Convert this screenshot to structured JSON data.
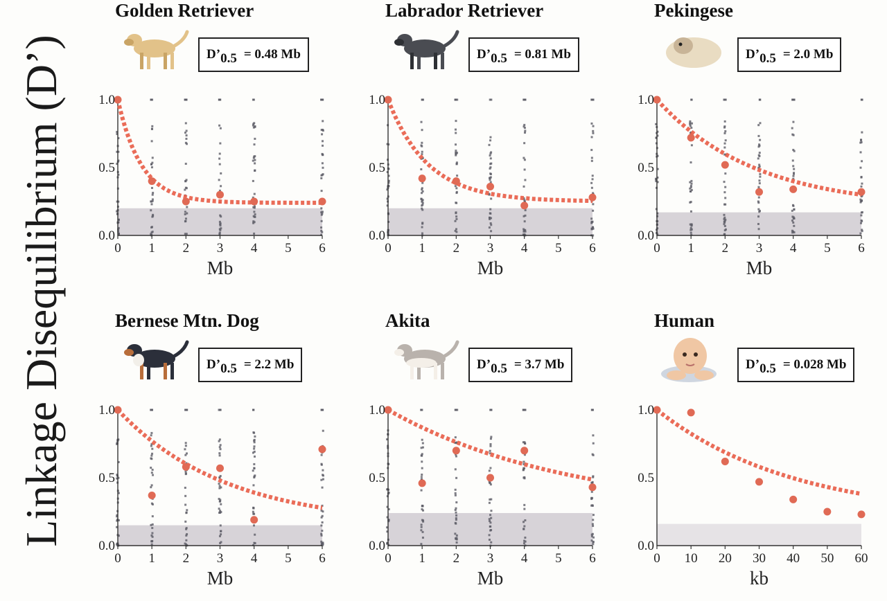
{
  "figure": {
    "ylabel": "Linkage Disequilibrium (D’)"
  },
  "colors": {
    "fit": "#e8604a",
    "obs": "#e06a55",
    "band": "#c9c4cc",
    "points": "#5c5d66"
  },
  "chart_data": [
    {
      "type": "scatter",
      "title": "Golden Retriever",
      "stat_prefix": "D’",
      "stat_sub": "0.5",
      "stat_value": "= 0.48 Mb",
      "icon": "golden-retriever-icon",
      "xlabel": "Mb",
      "xlim": [
        0,
        6
      ],
      "ylim": [
        0,
        1
      ],
      "xticks": [
        "0",
        "1",
        "2",
        "3",
        "4",
        "5",
        "6"
      ],
      "yticks": [
        "0.0",
        "0.5",
        "1.0"
      ],
      "band": [
        0,
        0.2
      ],
      "obs": [
        [
          0,
          1.0
        ],
        [
          1,
          0.4
        ],
        [
          2,
          0.25
        ],
        [
          3,
          0.3
        ],
        [
          4,
          0.25
        ],
        [
          6,
          0.25
        ]
      ],
      "fit": {
        "halfd": 0.48,
        "base": 0.24
      },
      "scatter_x": [
        0,
        1,
        2,
        3,
        4,
        6
      ]
    },
    {
      "type": "scatter",
      "title": "Labrador Retriever",
      "stat_prefix": "D’",
      "stat_sub": "0.5",
      "stat_value": "= 0.81 Mb",
      "icon": "labrador-retriever-icon",
      "xlabel": "Mb",
      "xlim": [
        0,
        6
      ],
      "ylim": [
        0,
        1
      ],
      "xticks": [
        "0",
        "1",
        "2",
        "3",
        "4",
        "5",
        "6"
      ],
      "yticks": [
        "0.0",
        "0.5",
        "1.0"
      ],
      "band": [
        0,
        0.2
      ],
      "obs": [
        [
          0,
          1.0
        ],
        [
          1,
          0.42
        ],
        [
          2,
          0.4
        ],
        [
          3,
          0.36
        ],
        [
          4,
          0.22
        ],
        [
          6,
          0.28
        ]
      ],
      "fit": {
        "halfd": 0.81,
        "base": 0.25
      },
      "scatter_x": [
        0,
        1,
        2,
        3,
        4,
        6
      ]
    },
    {
      "type": "scatter",
      "title": "Pekingese",
      "stat_prefix": "D’",
      "stat_sub": "0.5",
      "stat_value": "= 2.0 Mb",
      "icon": "pekingese-icon",
      "xlabel": "Mb",
      "xlim": [
        0,
        6
      ],
      "ylim": [
        0,
        1
      ],
      "xticks": [
        "0",
        "1",
        "2",
        "3",
        "4",
        "5",
        "6"
      ],
      "yticks": [
        "0.0",
        "0.5",
        "1.0"
      ],
      "band": [
        0,
        0.17
      ],
      "obs": [
        [
          0,
          1.0
        ],
        [
          1,
          0.72
        ],
        [
          2,
          0.52
        ],
        [
          3,
          0.32
        ],
        [
          4,
          0.34
        ],
        [
          6,
          0.32
        ]
      ],
      "fit": {
        "halfd": 2.0,
        "base": 0.2
      },
      "scatter_x": [
        0,
        1,
        2,
        3,
        4,
        6
      ]
    },
    {
      "type": "scatter",
      "title": "Bernese Mtn. Dog",
      "stat_prefix": "D’",
      "stat_sub": "0.5",
      "stat_value": "= 2.2 Mb",
      "icon": "bernese-mountain-dog-icon",
      "xlabel": "Mb",
      "xlim": [
        0,
        6
      ],
      "ylim": [
        0,
        1
      ],
      "xticks": [
        "0",
        "1",
        "2",
        "3",
        "4",
        "5",
        "6"
      ],
      "yticks": [
        "0.0",
        "0.5",
        "1.0"
      ],
      "band": [
        0,
        0.15
      ],
      "obs": [
        [
          0,
          1.0
        ],
        [
          1,
          0.37
        ],
        [
          2,
          0.58
        ],
        [
          3,
          0.57
        ],
        [
          4,
          0.19
        ],
        [
          6,
          0.71
        ]
      ],
      "fit": {
        "halfd": 2.2,
        "base": 0.15
      },
      "scatter_x": [
        0,
        1,
        2,
        3,
        4,
        6
      ]
    },
    {
      "type": "scatter",
      "title": "Akita",
      "stat_prefix": "D’",
      "stat_sub": "0.5",
      "stat_value": "= 3.7 Mb",
      "icon": "akita-icon",
      "xlabel": "Mb",
      "xlim": [
        0,
        6
      ],
      "ylim": [
        0,
        1
      ],
      "xticks": [
        "0",
        "1",
        "2",
        "3",
        "4",
        "5",
        "6"
      ],
      "yticks": [
        "0.0",
        "0.5",
        "1.0"
      ],
      "band": [
        0,
        0.24
      ],
      "obs": [
        [
          0,
          1.0
        ],
        [
          1,
          0.46
        ],
        [
          2,
          0.7
        ],
        [
          3,
          0.5
        ],
        [
          4,
          0.7
        ],
        [
          6,
          0.43
        ]
      ],
      "fit": {
        "halfd": 3.7,
        "base": 0.24
      },
      "scatter_x": [
        0,
        1,
        2,
        3,
        4,
        6
      ]
    },
    {
      "type": "scatter",
      "title": "Human",
      "stat_prefix": "D’",
      "stat_sub": "0.5",
      "stat_value": "= 0.028 Mb",
      "icon": "human-infant-icon",
      "xlabel": "kb",
      "xlabel_color": "#3e6db8",
      "xlim": [
        0,
        60
      ],
      "ylim": [
        0,
        1
      ],
      "xticks": [
        "0",
        "10",
        "20",
        "30",
        "40",
        "50",
        "60"
      ],
      "yticks": [
        "0.0",
        "0.5",
        "1.0"
      ],
      "band": [
        0,
        0.16
      ],
      "obs": [
        [
          0,
          1.0
        ],
        [
          10,
          0.98
        ],
        [
          20,
          0.62
        ],
        [
          30,
          0.47
        ],
        [
          40,
          0.34
        ],
        [
          50,
          0.25
        ],
        [
          60,
          0.23
        ]
      ],
      "fit": {
        "halfd": 28,
        "base": 0.2
      },
      "scatter_x": []
    }
  ]
}
